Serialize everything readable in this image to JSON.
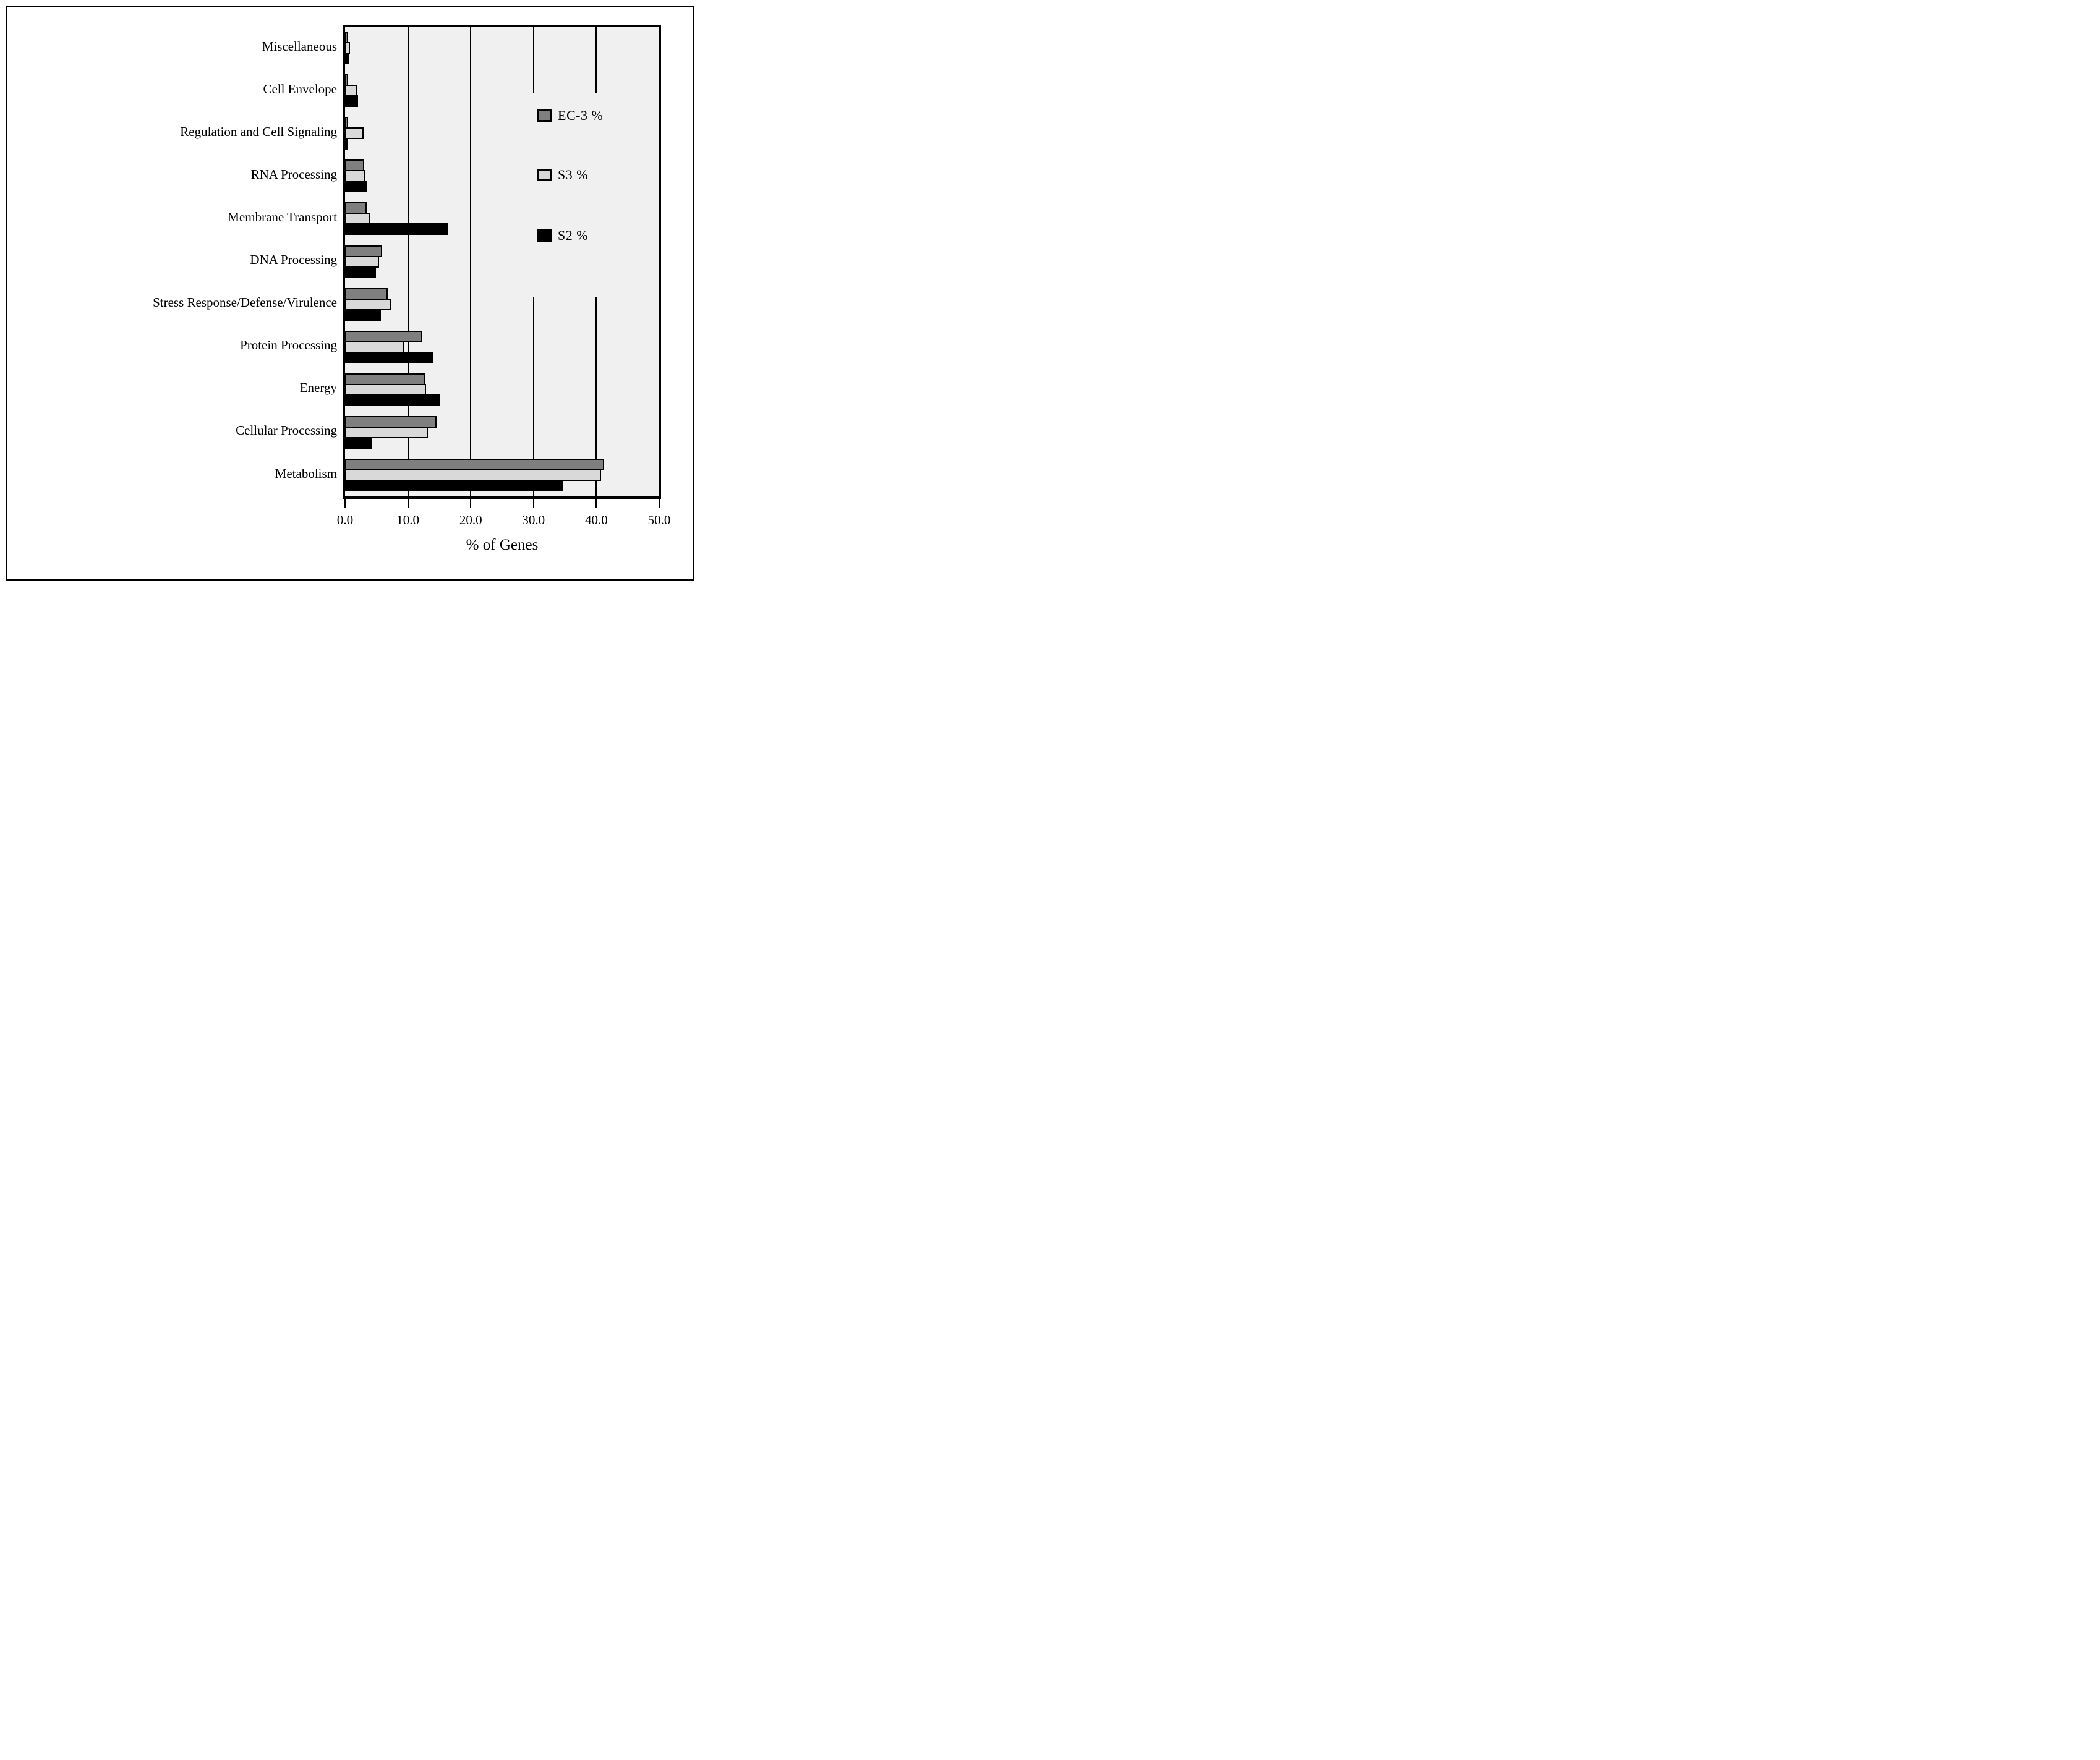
{
  "figure": {
    "xlabel": "% of Genes"
  },
  "chart_data": {
    "type": "bar",
    "orientation": "horizontal",
    "title": "",
    "xlabel": "% of Genes",
    "xlim": [
      0,
      50
    ],
    "x_tick_labels": [
      "0.0",
      "10.0",
      "20.0",
      "30.0",
      "40.0",
      "50.0"
    ],
    "grid": true,
    "plot_bg": "#f0f0f0",
    "legend_position": "inside-right",
    "categories": [
      "Miscellaneous",
      "Cell Envelope",
      "Regulation and Cell Signaling",
      "RNA Processing",
      "Membrane Transport",
      "DNA Processing",
      "Stress Response/Defense/Virulence",
      "Protein Processing",
      "Energy",
      "Cellular Processing",
      "Metabolism"
    ],
    "series": [
      {
        "name": "EC-3 %",
        "color": "#7f7f7f",
        "values": [
          0.5,
          0.5,
          0.5,
          3.0,
          3.4,
          5.9,
          6.8,
          12.3,
          12.7,
          14.6,
          41.2
        ]
      },
      {
        "name": "S3 %",
        "color": "#d9d9d9",
        "values": [
          0.8,
          1.9,
          2.9,
          3.1,
          4.0,
          5.4,
          7.4,
          9.3,
          12.9,
          13.2,
          40.7
        ]
      },
      {
        "name": "S2 %",
        "color": "#000000",
        "values": [
          0.6,
          2.1,
          0.4,
          3.5,
          16.4,
          4.9,
          5.7,
          14.1,
          15.2,
          4.3,
          34.7
        ]
      }
    ]
  }
}
